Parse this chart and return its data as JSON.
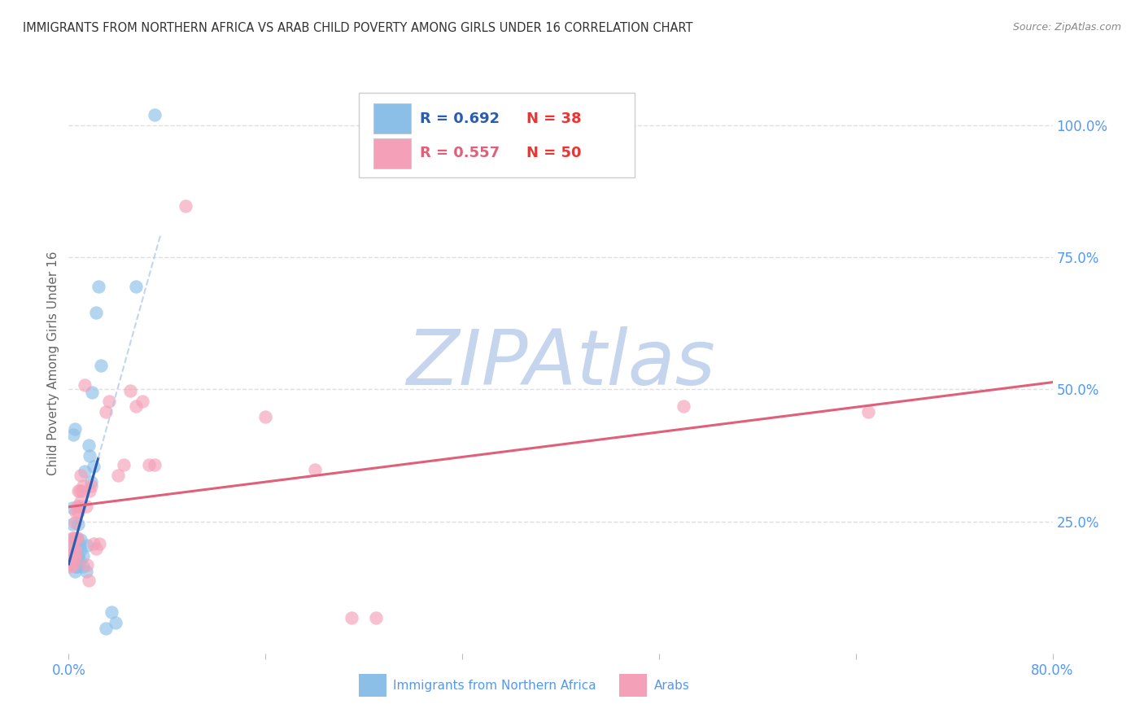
{
  "title": "IMMIGRANTS FROM NORTHERN AFRICA VS ARAB CHILD POVERTY AMONG GIRLS UNDER 16 CORRELATION CHART",
  "source": "Source: ZipAtlas.com",
  "ylabel": "Child Poverty Among Girls Under 16",
  "xlim": [
    0.0,
    0.8
  ],
  "ylim": [
    0.0,
    1.1
  ],
  "yticks_right": [
    0.25,
    0.5,
    0.75,
    1.0
  ],
  "ytick_labels_right": [
    "25.0%",
    "50.0%",
    "75.0%",
    "100.0%"
  ],
  "blue_R": 0.692,
  "blue_N": 38,
  "pink_R": 0.557,
  "pink_N": 50,
  "blue_label": "Immigrants from Northern Africa",
  "pink_label": "Arabs",
  "blue_color": "#8bbfe8",
  "pink_color": "#f4a0b8",
  "blue_line_color": "#2a5db0",
  "pink_line_color": "#e0607a",
  "blue_scatter": [
    [
      0.001,
      0.175
    ],
    [
      0.002,
      0.195
    ],
    [
      0.003,
      0.245
    ],
    [
      0.003,
      0.275
    ],
    [
      0.004,
      0.215
    ],
    [
      0.004,
      0.415
    ],
    [
      0.005,
      0.425
    ],
    [
      0.005,
      0.155
    ],
    [
      0.006,
      0.165
    ],
    [
      0.006,
      0.185
    ],
    [
      0.006,
      0.215
    ],
    [
      0.007,
      0.165
    ],
    [
      0.007,
      0.185
    ],
    [
      0.007,
      0.215
    ],
    [
      0.008,
      0.185
    ],
    [
      0.008,
      0.245
    ],
    [
      0.009,
      0.205
    ],
    [
      0.009,
      0.175
    ],
    [
      0.01,
      0.215
    ],
    [
      0.01,
      0.195
    ],
    [
      0.012,
      0.165
    ],
    [
      0.012,
      0.185
    ],
    [
      0.013,
      0.345
    ],
    [
      0.014,
      0.155
    ],
    [
      0.015,
      0.205
    ],
    [
      0.016,
      0.395
    ],
    [
      0.017,
      0.375
    ],
    [
      0.018,
      0.325
    ],
    [
      0.019,
      0.495
    ],
    [
      0.02,
      0.355
    ],
    [
      0.022,
      0.645
    ],
    [
      0.024,
      0.695
    ],
    [
      0.026,
      0.545
    ],
    [
      0.03,
      0.048
    ],
    [
      0.035,
      0.078
    ],
    [
      0.038,
      0.058
    ],
    [
      0.055,
      0.695
    ],
    [
      0.07,
      1.02
    ]
  ],
  "pink_scatter": [
    [
      0.001,
      0.165
    ],
    [
      0.002,
      0.168
    ],
    [
      0.002,
      0.178
    ],
    [
      0.003,
      0.178
    ],
    [
      0.003,
      0.198
    ],
    [
      0.003,
      0.218
    ],
    [
      0.004,
      0.168
    ],
    [
      0.004,
      0.188
    ],
    [
      0.004,
      0.218
    ],
    [
      0.005,
      0.178
    ],
    [
      0.005,
      0.198
    ],
    [
      0.005,
      0.248
    ],
    [
      0.006,
      0.188
    ],
    [
      0.006,
      0.218
    ],
    [
      0.006,
      0.268
    ],
    [
      0.007,
      0.218
    ],
    [
      0.007,
      0.278
    ],
    [
      0.008,
      0.268
    ],
    [
      0.008,
      0.308
    ],
    [
      0.009,
      0.278
    ],
    [
      0.009,
      0.308
    ],
    [
      0.01,
      0.288
    ],
    [
      0.01,
      0.338
    ],
    [
      0.011,
      0.308
    ],
    [
      0.012,
      0.318
    ],
    [
      0.013,
      0.508
    ],
    [
      0.014,
      0.278
    ],
    [
      0.015,
      0.168
    ],
    [
      0.016,
      0.138
    ],
    [
      0.017,
      0.308
    ],
    [
      0.018,
      0.318
    ],
    [
      0.02,
      0.208
    ],
    [
      0.022,
      0.198
    ],
    [
      0.025,
      0.208
    ],
    [
      0.03,
      0.458
    ],
    [
      0.033,
      0.478
    ],
    [
      0.04,
      0.338
    ],
    [
      0.045,
      0.358
    ],
    [
      0.05,
      0.498
    ],
    [
      0.055,
      0.468
    ],
    [
      0.06,
      0.478
    ],
    [
      0.065,
      0.358
    ],
    [
      0.07,
      0.358
    ],
    [
      0.095,
      0.848
    ],
    [
      0.16,
      0.448
    ],
    [
      0.2,
      0.348
    ],
    [
      0.23,
      0.068
    ],
    [
      0.25,
      0.068
    ],
    [
      0.5,
      0.468
    ],
    [
      0.65,
      0.458
    ]
  ],
  "watermark": "ZIPAtlas",
  "watermark_color": "#c8d8f0",
  "background_color": "#ffffff",
  "grid_color": "#d8d8d8",
  "title_color": "#333333",
  "axis_label_color": "#666666",
  "tick_label_color": "#5599ee",
  "legend_edge_color": "#cccccc"
}
